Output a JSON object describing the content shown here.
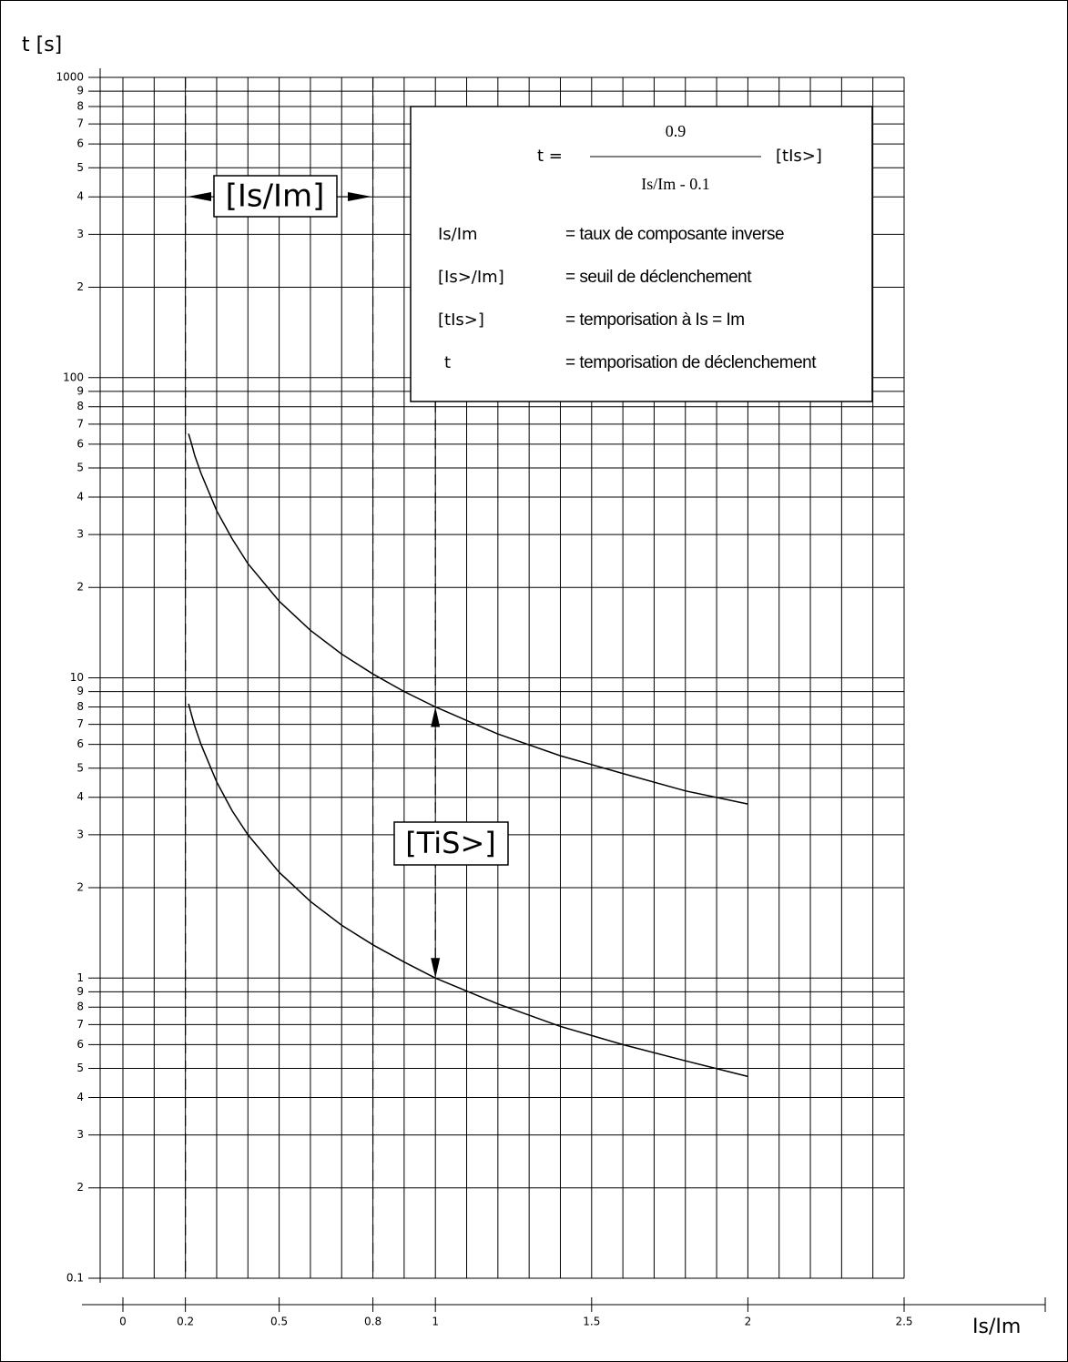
{
  "chart_data": {
    "type": "line",
    "y_label": "t [s]",
    "x_label": "Is/Im",
    "log_y": true,
    "xlim": [
      0,
      2.5
    ],
    "ylim": [
      0.1,
      1000
    ],
    "xticks": [
      0,
      0.2,
      0.5,
      0.8,
      1,
      1.5,
      2,
      2.5
    ],
    "xgrid": [
      0,
      0.1,
      0.2,
      0.3,
      0.4,
      0.5,
      0.6,
      0.7,
      0.8,
      0.9,
      1,
      1.1,
      1.2,
      1.3,
      1.4,
      1.5,
      1.6,
      1.7,
      1.8,
      1.9,
      2,
      2.1,
      2.2,
      2.3,
      2.4,
      2.5
    ],
    "yticks": [
      1000,
      {
        "value": 900,
        "label": "9"
      },
      {
        "value": 800,
        "label": "8"
      },
      {
        "value": 700,
        "label": "7"
      },
      {
        "value": 600,
        "label": "6"
      },
      {
        "value": 500,
        "label": "5"
      },
      {
        "value": 400,
        "label": "4"
      },
      {
        "value": 300,
        "label": "3"
      },
      {
        "value": 200,
        "label": "2"
      },
      100,
      {
        "value": 90,
        "label": "9"
      },
      {
        "value": 80,
        "label": "8"
      },
      {
        "value": 70,
        "label": "7"
      },
      {
        "value": 60,
        "label": "6"
      },
      {
        "value": 50,
        "label": "5"
      },
      {
        "value": 40,
        "label": "4"
      },
      {
        "value": 30,
        "label": "3"
      },
      {
        "value": 20,
        "label": "2"
      },
      10,
      9,
      8,
      7,
      6,
      5,
      4,
      3,
      2,
      1,
      {
        "value": 0.9,
        "label": "9"
      },
      {
        "value": 0.8,
        "label": "8"
      },
      {
        "value": 0.7,
        "label": "7"
      },
      {
        "value": 0.6,
        "label": "6"
      },
      {
        "value": 0.5,
        "label": "5"
      },
      {
        "value": 0.4,
        "label": "4"
      },
      {
        "value": 0.3,
        "label": "3"
      },
      {
        "value": 0.2,
        "label": "2"
      },
      0.1
    ],
    "grid": true,
    "x": [
      0.21,
      0.22,
      0.23,
      0.25,
      0.3,
      0.35,
      0.4,
      0.5,
      0.6,
      0.7,
      0.8,
      0.9,
      1,
      1.2,
      1.4,
      1.6,
      1.8,
      2
    ],
    "series": [
      {
        "color": "#000000",
        "values": [
          65,
          60,
          55,
          48,
          36,
          29,
          24,
          18,
          14.4,
          12,
          10.3,
          9,
          8,
          6.5,
          5.5,
          4.8,
          4.2,
          3.8
        ]
      },
      {
        "color": "#000000",
        "values": [
          8.2,
          7.5,
          6.9,
          6,
          4.5,
          3.6,
          3,
          2.25,
          1.8,
          1.5,
          1.29,
          1.13,
          1,
          0.82,
          0.69,
          0.6,
          0.53,
          0.47
        ]
      }
    ],
    "range_label": "[Is/Im]",
    "delay_label": "[TiS>]",
    "formula": {
      "lhs": "t =",
      "numerator": "0.9",
      "denominator": "Is/Im - 0.1",
      "factor": "[tIs>]"
    },
    "definitions": [
      {
        "symbol": "Is/Im",
        "text": "= taux de composante inverse"
      },
      {
        "symbol": "[Is>/Im]",
        "text": "= seuil de déclenchement"
      },
      {
        "symbol": "[tIs>]",
        "text": "= temporisation à Is = Im"
      },
      {
        "symbol": "t",
        "text": "= temporisation de déclenchement"
      }
    ]
  }
}
